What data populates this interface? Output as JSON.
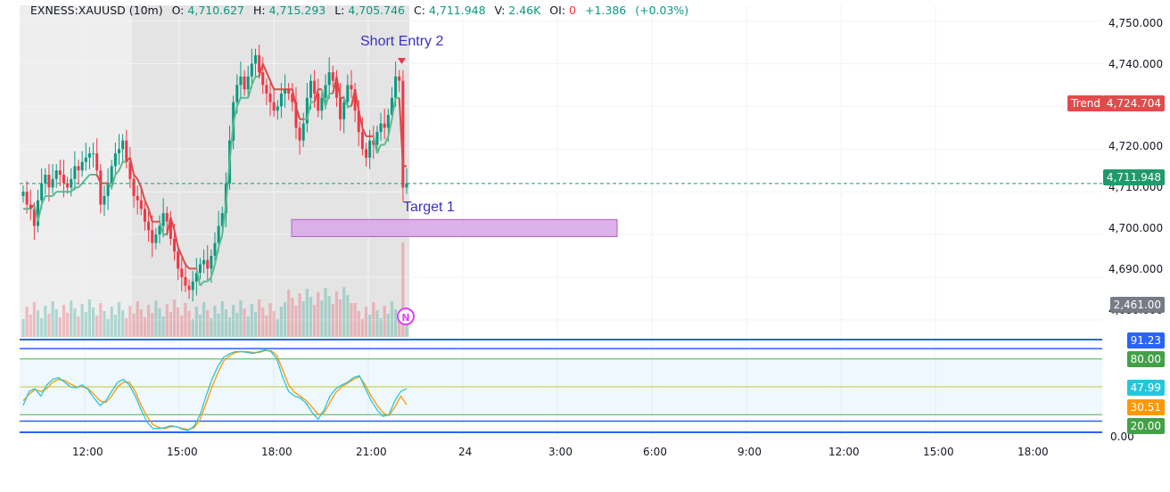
{
  "legend": {
    "symbol": "EXNESS:XAUUSD (10m)",
    "o_label": "O:",
    "o": "4,710.627",
    "h_label": "H:",
    "h": "4,715.293",
    "l_label": "L:",
    "l": "4,705.746",
    "c_label": "C:",
    "c": "4,711.948",
    "v_label": "V:",
    "v": "2.46K",
    "oi_label": "OI:",
    "oi": "0",
    "change": "+1.386",
    "change_pct": "(+0.03%)"
  },
  "price_axis": [
    "4,750.000",
    "4,740.000",
    "4,730.000",
    "4,720.000",
    "4,710.000",
    "4,700.000",
    "4,690.000",
    "4,680.000"
  ],
  "time_axis": [
    "12:00",
    "15:00",
    "18:00",
    "21:00",
    "24",
    "3:00",
    "6:00",
    "9:00",
    "12:00",
    "15:00",
    "18:00"
  ],
  "labels": {
    "trend_name": "Trend",
    "trend_value": "4,724.704",
    "last_price": "4,711.948",
    "volume": "2,461.00"
  },
  "annotations": {
    "short_entry": "Short Entry 2",
    "target": "Target 1",
    "session_marker": "N"
  },
  "oscillator": {
    "axis_bottom": "0.00",
    "labels": {
      "upper": "91.23",
      "ob": "80.00",
      "k": "47.99",
      "d": "30.51",
      "os": "20.00"
    }
  },
  "colors": {
    "up": "#089981",
    "down": "#f23645",
    "trend_up": "#5fb98f",
    "trend_down": "#d94b4b",
    "target_box": "#d9a8e8",
    "annotation": "#3b30c9",
    "blue": "#2962ff",
    "green": "#4caf50",
    "orange": "#ff9800",
    "cyan": "#26c6da"
  },
  "chart_data": {
    "type": "candlestick",
    "symbol": "EXNESS:XAUUSD",
    "interval": "10m",
    "ohlc_last": {
      "open": 4710.627,
      "high": 4715.293,
      "low": 4705.746,
      "close": 4711.948
    },
    "ylim": [
      4676,
      4752
    ],
    "closes": [
      4710,
      4707,
      4706,
      4702,
      4708,
      4712,
      4714,
      4711,
      4713,
      4715,
      4714,
      4712,
      4711,
      4713,
      4716,
      4715,
      4717,
      4718,
      4719,
      4719,
      4715,
      4707,
      4709,
      4712,
      4716,
      4719,
      4720,
      4722,
      4717,
      4713,
      4709,
      4708,
      4706,
      4703,
      4701,
      4698,
      4700,
      4702,
      4705,
      4703,
      4699,
      4696,
      4692,
      4690,
      4688,
      4687,
      4689,
      4691,
      4693,
      4694,
      4692,
      4695,
      4698,
      4702,
      4705,
      4712,
      4722,
      4731,
      4735,
      4737,
      4734,
      4737,
      4740,
      4742,
      4738,
      4735,
      4733,
      4731,
      4729,
      4730,
      4733,
      4734,
      4733,
      4731,
      4725,
      4722,
      4726,
      4732,
      4736,
      4733,
      4729,
      4732,
      4735,
      4738,
      4736,
      4732,
      4727,
      4731,
      4735,
      4734,
      4729,
      4724,
      4720,
      4718,
      4722,
      4721,
      4724,
      4726,
      4725,
      4728,
      4732,
      4737,
      4736,
      4711,
      4712
    ],
    "volume_last": 2461.0,
    "trend_value": 4724.704,
    "target_zone": [
      4699.5,
      4703.5
    ],
    "oscillator": {
      "k": [
        30,
        45,
        48,
        40,
        52,
        58,
        60,
        55,
        50,
        49,
        52,
        47,
        38,
        30,
        35,
        45,
        55,
        58,
        52,
        40,
        25,
        12,
        5,
        5,
        6,
        8,
        7,
        4,
        3,
        8,
        20,
        40,
        58,
        72,
        82,
        86,
        88,
        88,
        87,
        86,
        88,
        90,
        88,
        80,
        60,
        45,
        40,
        38,
        32,
        22,
        15,
        25,
        40,
        48,
        52,
        55,
        60,
        62,
        48,
        35,
        25,
        18,
        20,
        35,
        45,
        47.99
      ],
      "d": [
        35,
        42,
        47,
        45,
        48,
        55,
        58,
        57,
        53,
        50,
        50,
        48,
        42,
        35,
        33,
        40,
        50,
        55,
        55,
        45,
        30,
        18,
        9,
        6,
        5,
        7,
        7,
        5,
        4,
        6,
        15,
        32,
        50,
        65,
        78,
        84,
        87,
        88,
        88,
        87,
        87,
        89,
        89,
        84,
        68,
        52,
        44,
        40,
        35,
        28,
        20,
        22,
        33,
        44,
        50,
        54,
        58,
        61,
        52,
        40,
        30,
        22,
        19,
        28,
        40,
        30.51
      ],
      "levels": [
        91.23,
        80.0,
        20.0,
        0.0
      ]
    }
  }
}
